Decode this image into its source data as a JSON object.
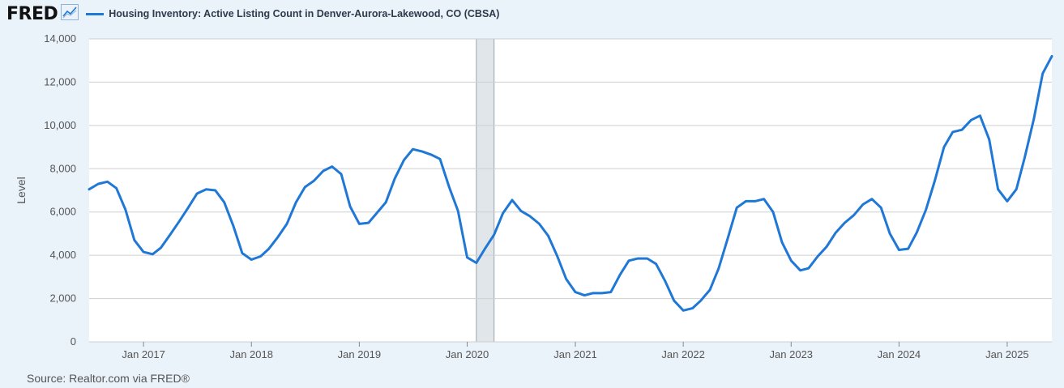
{
  "header": {
    "logo_text": "FRED",
    "logo_icon": "chart-line-icon",
    "series_label": "Housing Inventory: Active Listing Count in Denver-Aurora-Lakewood, CO (CBSA)"
  },
  "footer": {
    "source": "Source: Realtor.com via FRED®"
  },
  "colors": {
    "line": "#1f77d6",
    "background": "#eaf2fa",
    "plot": "#ffffff",
    "grid": "#cfcfcf",
    "recession": "#e1e6ea"
  },
  "chart_data": {
    "type": "line",
    "title": "",
    "xlabel": "",
    "ylabel": "Level",
    "ylim": [
      0,
      14000
    ],
    "xlim": [
      "2016-07-01",
      "2025-06-01"
    ],
    "grid": true,
    "legend_position": "top-left",
    "yticks": [
      0,
      2000,
      4000,
      6000,
      8000,
      10000,
      12000,
      14000
    ],
    "ytick_labels": [
      "0",
      "2,000",
      "4,000",
      "6,000",
      "8,000",
      "10,000",
      "12,000",
      "14,000"
    ],
    "xticks": [
      "2017-01-01",
      "2018-01-01",
      "2019-01-01",
      "2020-01-01",
      "2021-01-01",
      "2022-01-01",
      "2023-01-01",
      "2024-01-01",
      "2025-01-01"
    ],
    "xtick_labels": [
      "Jan 2017",
      "Jan 2018",
      "Jan 2019",
      "Jan 2020",
      "Jan 2021",
      "Jan 2022",
      "Jan 2023",
      "Jan 2024",
      "Jan 2025"
    ],
    "shaded_periods": [
      {
        "start": "2020-02-01",
        "end": "2020-04-01"
      }
    ],
    "series": [
      {
        "name": "Housing Inventory: Active Listing Count in Denver-Aurora-Lakewood, CO (CBSA)",
        "x": [
          "2016-07-01",
          "2016-08-01",
          "2016-09-01",
          "2016-10-01",
          "2016-11-01",
          "2016-12-01",
          "2017-01-01",
          "2017-02-01",
          "2017-03-01",
          "2017-04-01",
          "2017-05-01",
          "2017-06-01",
          "2017-07-01",
          "2017-08-01",
          "2017-09-01",
          "2017-10-01",
          "2017-11-01",
          "2017-12-01",
          "2018-01-01",
          "2018-02-01",
          "2018-03-01",
          "2018-04-01",
          "2018-05-01",
          "2018-06-01",
          "2018-07-01",
          "2018-08-01",
          "2018-09-01",
          "2018-10-01",
          "2018-11-01",
          "2018-12-01",
          "2019-01-01",
          "2019-02-01",
          "2019-03-01",
          "2019-04-01",
          "2019-05-01",
          "2019-06-01",
          "2019-07-01",
          "2019-08-01",
          "2019-09-01",
          "2019-10-01",
          "2019-11-01",
          "2019-12-01",
          "2020-01-01",
          "2020-02-01",
          "2020-03-01",
          "2020-04-01",
          "2020-05-01",
          "2020-06-01",
          "2020-07-01",
          "2020-08-01",
          "2020-09-01",
          "2020-10-01",
          "2020-11-01",
          "2020-12-01",
          "2021-01-01",
          "2021-02-01",
          "2021-03-01",
          "2021-04-01",
          "2021-05-01",
          "2021-06-01",
          "2021-07-01",
          "2021-08-01",
          "2021-09-01",
          "2021-10-01",
          "2021-11-01",
          "2021-12-01",
          "2022-01-01",
          "2022-02-01",
          "2022-03-01",
          "2022-04-01",
          "2022-05-01",
          "2022-06-01",
          "2022-07-01",
          "2022-08-01",
          "2022-09-01",
          "2022-10-01",
          "2022-11-01",
          "2022-12-01",
          "2023-01-01",
          "2023-02-01",
          "2023-03-01",
          "2023-04-01",
          "2023-05-01",
          "2023-06-01",
          "2023-07-01",
          "2023-08-01",
          "2023-09-01",
          "2023-10-01",
          "2023-11-01",
          "2023-12-01",
          "2024-01-01",
          "2024-02-01",
          "2024-03-01",
          "2024-04-01",
          "2024-05-01",
          "2024-06-01",
          "2024-07-01",
          "2024-08-01",
          "2024-09-01",
          "2024-10-01",
          "2024-11-01",
          "2024-12-01",
          "2025-01-01",
          "2025-02-01",
          "2025-03-01",
          "2025-04-01",
          "2025-05-01",
          "2025-06-01"
        ],
        "values": [
          7050,
          7300,
          7400,
          7100,
          6100,
          4700,
          4150,
          4050,
          4350,
          4950,
          5550,
          6200,
          6850,
          7050,
          7000,
          6450,
          5350,
          4100,
          3800,
          3950,
          4300,
          4850,
          5450,
          6450,
          7150,
          7450,
          7900,
          8100,
          7750,
          6250,
          5450,
          5500,
          5950,
          6450,
          7550,
          8400,
          8900,
          8800,
          8650,
          8450,
          7150,
          6050,
          3900,
          3650,
          4300,
          4950,
          5950,
          6550,
          6050,
          5800,
          5450,
          4900,
          3950,
          2900,
          2300,
          2150,
          2250,
          2250,
          2300,
          3100,
          3750,
          3850,
          3850,
          3600,
          2800,
          1900,
          1450,
          1550,
          1900,
          2400,
          3400,
          4800,
          6200,
          6500,
          6500,
          6600,
          6000,
          4600,
          3750,
          3300,
          3400,
          3950,
          4400,
          5050,
          5500,
          5850,
          6350,
          6600,
          6200,
          5000,
          4250,
          4300,
          5050,
          6100,
          7450,
          9000,
          9700,
          9800,
          10250,
          10450,
          9350,
          7050,
          6500,
          7050,
          8500,
          10300,
          12400,
          13200
        ]
      }
    ]
  }
}
